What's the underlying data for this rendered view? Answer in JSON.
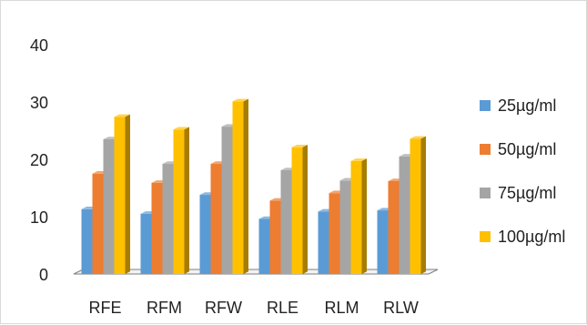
{
  "chart_data": {
    "type": "bar",
    "title": "",
    "xlabel": "",
    "ylabel": "",
    "ylim": [
      0,
      40
    ],
    "yticks": [
      0,
      10,
      20,
      30,
      40
    ],
    "categories": [
      "RFE",
      "RFM",
      "RFW",
      "RLE",
      "RLM",
      "RLW"
    ],
    "series": [
      {
        "name": "25µg/ml",
        "color": "#5b9bd5",
        "values": [
          11.3,
          10.5,
          13.8,
          9.6,
          10.9,
          11.1
        ]
      },
      {
        "name": "50µg/ml",
        "color": "#ed7d31",
        "values": [
          17.5,
          15.9,
          19.2,
          12.8,
          14.1,
          16.2
        ]
      },
      {
        "name": "75µg/ml",
        "color": "#a5a5a5",
        "values": [
          23.5,
          19.2,
          25.7,
          18.1,
          16.3,
          20.5
        ]
      },
      {
        "name": "100µg/ml",
        "color": "#ffc000",
        "values": [
          27.4,
          25.2,
          30.1,
          22.1,
          19.7,
          23.6
        ]
      }
    ],
    "grid": false,
    "legend": "right",
    "style": "3d-clustered-column"
  }
}
